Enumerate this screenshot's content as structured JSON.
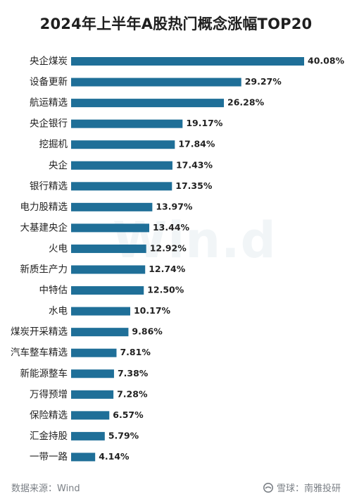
{
  "chart_data": {
    "type": "bar",
    "title": "2024年上半年A股热门概念涨幅TOP20",
    "categories": [
      "央企煤炭",
      "设备更新",
      "航运精选",
      "央企银行",
      "挖掘机",
      "央企",
      "银行精选",
      "电力股精选",
      "大基建央企",
      "火电",
      "新质生产力",
      "中特估",
      "水电",
      "煤炭开采精选",
      "汽车整车精选",
      "新能源整车",
      "万得预增",
      "保险精选",
      "汇金持股",
      "一带一路"
    ],
    "values": [
      40.08,
      29.27,
      26.28,
      19.17,
      17.84,
      17.43,
      17.35,
      13.97,
      13.44,
      12.92,
      12.74,
      12.5,
      10.17,
      9.86,
      7.81,
      7.38,
      7.28,
      6.57,
      5.79,
      4.14
    ],
    "value_labels": [
      "40.08%",
      "29.27%",
      "26.28%",
      "19.17%",
      "17.84%",
      "17.43%",
      "17.35%",
      "13.97%",
      "13.44%",
      "12.92%",
      "12.74%",
      "12.50%",
      "10.17%",
      "9.86%",
      "7.81%",
      "7.38%",
      "7.28%",
      "6.57%",
      "5.79%",
      "4.14%"
    ],
    "xlim": [
      0,
      40.08
    ],
    "grid": false,
    "legend": "none",
    "bar_color": "#1f6f98"
  },
  "watermark": "Win.d",
  "footer": {
    "source": "数据来源：Wind",
    "brand": "雪球：南雅投研",
    "brand_icon": "snowball-icon"
  },
  "colors": {
    "text": "#222222",
    "muted": "#7a7f85"
  }
}
